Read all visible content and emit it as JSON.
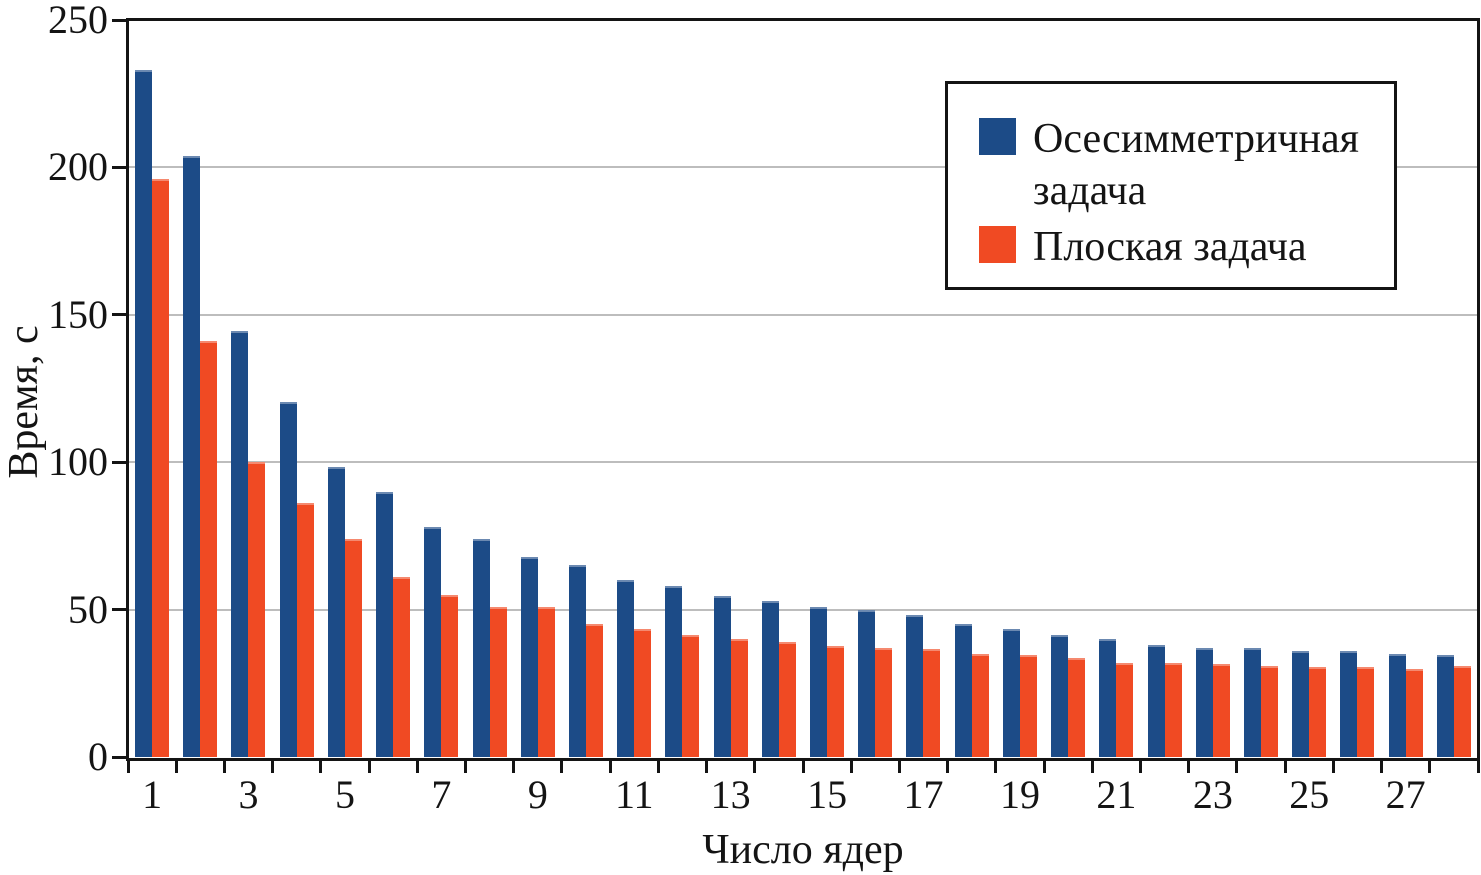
{
  "figure": {
    "background_color": "#ffffff",
    "text_color": "#141414",
    "frame_color": "#141414",
    "gridline_color": "#bdbdbd"
  },
  "chart_data": {
    "type": "bar",
    "title": "",
    "xlabel": "Число ядер",
    "ylabel": "Время, с",
    "ylim": [
      0,
      250
    ],
    "yticks": [
      0,
      50,
      100,
      150,
      200,
      250
    ],
    "grid": "horizontal",
    "legend_position": "upper right",
    "categories": [
      1,
      2,
      3,
      4,
      5,
      6,
      7,
      8,
      9,
      10,
      11,
      12,
      13,
      14,
      15,
      16,
      17,
      18,
      19,
      20,
      21,
      22,
      23,
      24,
      25,
      26,
      27,
      28
    ],
    "xtick_labels_shown": [
      "1",
      "3",
      "5",
      "7",
      "9",
      "11",
      "13",
      "15",
      "17",
      "19",
      "21",
      "23",
      "25",
      "27"
    ],
    "series": [
      {
        "key": "axisymmetric",
        "name": "Осесимметричная задача",
        "color": "#1c4b87",
        "values": [
          233,
          204,
          144.5,
          120.5,
          98.5,
          90,
          78,
          74,
          68,
          65,
          60,
          58,
          54.5,
          53,
          51,
          50,
          48,
          45,
          43.5,
          41.5,
          40,
          38,
          37,
          37,
          36,
          36,
          35,
          34.5
        ]
      },
      {
        "key": "flat",
        "name": "Плоская задача",
        "color": "#f04a23",
        "values": [
          196,
          141,
          100,
          86,
          74,
          61,
          55,
          51,
          51,
          45,
          43.5,
          41.5,
          40,
          39,
          37.5,
          37,
          36.5,
          35,
          34.5,
          33.5,
          32,
          32,
          31.5,
          31,
          30.5,
          30.5,
          30,
          31
        ]
      }
    ]
  }
}
